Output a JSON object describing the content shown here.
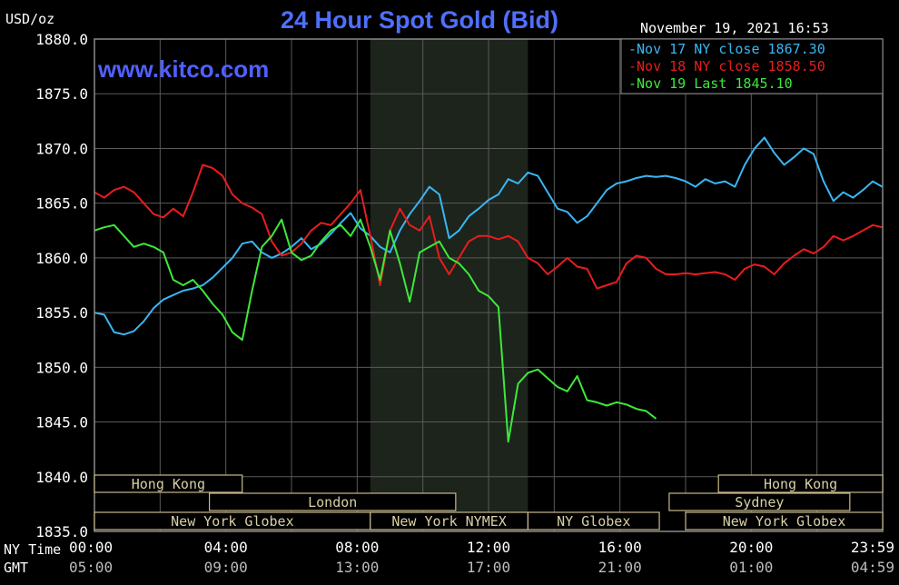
{
  "header": {
    "units": "USD/oz",
    "title": "24 Hour Spot Gold (Bid)",
    "site": "www.kitco.com",
    "timestamp": "November 19, 2021 16:53"
  },
  "legend": [
    {
      "label": "Nov 17 NY close 1867.30",
      "color": "#39b6f4"
    },
    {
      "label": "Nov 18 NY close 1858.50",
      "color": "#e81d1d"
    },
    {
      "label": "Nov 19 Last 1845.10",
      "color": "#3ee83a"
    }
  ],
  "axis": {
    "row_label_ny": "NY Time",
    "row_label_gmt": "GMT",
    "y_ticks": [
      "1880.0",
      "1875.0",
      "1870.0",
      "1865.0",
      "1860.0",
      "1855.0",
      "1850.0",
      "1845.0",
      "1840.0",
      "1835.0"
    ],
    "ny_ticks": [
      "00:00",
      "04:00",
      "08:00",
      "12:00",
      "16:00",
      "20:00",
      "23:59"
    ],
    "gmt_ticks": [
      "05:00",
      "09:00",
      "13:00",
      "17:00",
      "21:00",
      "01:00",
      "04:59"
    ]
  },
  "sessions": [
    {
      "label": "Hong Kong",
      "start": -1.0,
      "end": 4.5
    },
    {
      "label": "London",
      "start": 3.5,
      "end": 11.0
    },
    {
      "label": "New York Globex",
      "start": 0.0,
      "end": 8.4
    },
    {
      "label": "New York NYMEX",
      "start": 8.4,
      "end": 13.2
    },
    {
      "label": "NY Globex",
      "start": 13.2,
      "end": 17.2
    },
    {
      "label": "Hong Kong",
      "start": 19.0,
      "end": 24.0
    },
    {
      "label": "Sydney",
      "start": 17.5,
      "end": 23.0
    },
    {
      "label": "New York Globex",
      "start": 18.0,
      "end": 24.0
    }
  ],
  "chart_data": {
    "type": "line",
    "title": "24 Hour Spot Gold (Bid)",
    "ylabel": "USD/oz",
    "xlabel": "NY Time",
    "xlim": [
      0,
      24
    ],
    "ylim": [
      1835,
      1880
    ],
    "shaded_region": [
      8.4,
      13.2
    ],
    "grid": true,
    "legend_position": "top-right",
    "series": [
      {
        "name": "Nov 17 NY close 1867.30",
        "color": "#39b6f4",
        "x": [
          0,
          0.3,
          0.6,
          0.9,
          1.2,
          1.5,
          1.8,
          2.1,
          2.4,
          2.7,
          3.0,
          3.3,
          3.6,
          3.9,
          4.2,
          4.5,
          4.8,
          5.1,
          5.4,
          5.7,
          6.0,
          6.3,
          6.6,
          6.9,
          7.2,
          7.5,
          7.8,
          8.1,
          8.4,
          8.7,
          9.0,
          9.3,
          9.6,
          9.9,
          10.2,
          10.5,
          10.8,
          11.1,
          11.4,
          11.7,
          12.0,
          12.3,
          12.6,
          12.9,
          13.2,
          13.5,
          13.8,
          14.1,
          14.4,
          14.7,
          15.0,
          15.3,
          15.6,
          15.9,
          16.2,
          16.5,
          16.8,
          17.1,
          17.4,
          17.7,
          18.0,
          18.3,
          18.6,
          18.9,
          19.2,
          19.5,
          19.8,
          20.1,
          20.4,
          20.7,
          21.0,
          21.3,
          21.6,
          21.9,
          22.2,
          22.5,
          22.8,
          23.1,
          23.4,
          23.7,
          23.99
        ],
        "values": [
          1855,
          1854.8,
          1853.2,
          1853.0,
          1853.3,
          1854.2,
          1855.4,
          1856.2,
          1856.6,
          1857.0,
          1857.2,
          1857.5,
          1858.2,
          1859.1,
          1860.0,
          1861.3,
          1861.5,
          1860.5,
          1860.0,
          1860.4,
          1861.0,
          1861.8,
          1860.8,
          1861.3,
          1862.2,
          1863.2,
          1864.1,
          1862.7,
          1862.0,
          1861.0,
          1860.5,
          1862.5,
          1864.0,
          1865.2,
          1866.5,
          1865.8,
          1861.8,
          1862.5,
          1863.8,
          1864.5,
          1865.3,
          1865.8,
          1867.2,
          1866.8,
          1867.8,
          1867.5,
          1866.0,
          1864.5,
          1864.2,
          1863.2,
          1863.8,
          1865.0,
          1866.2,
          1866.8,
          1867.0,
          1867.3,
          1867.5,
          1867.4,
          1867.5,
          1867.3,
          1867.0,
          1866.5,
          1867.2,
          1866.8,
          1867.0,
          1866.5,
          1868.5,
          1870.0,
          1871.0,
          1869.6,
          1868.5,
          1869.2,
          1870.0,
          1869.5,
          1867.0,
          1865.2,
          1866.0,
          1865.5,
          1866.2,
          1867.0,
          1866.5
        ]
      },
      {
        "name": "Nov 18 NY close 1858.50",
        "color": "#e81d1d",
        "x": [
          0,
          0.3,
          0.6,
          0.9,
          1.2,
          1.5,
          1.8,
          2.1,
          2.4,
          2.7,
          3.0,
          3.3,
          3.6,
          3.9,
          4.2,
          4.5,
          4.8,
          5.1,
          5.4,
          5.7,
          6.0,
          6.3,
          6.6,
          6.9,
          7.2,
          7.5,
          7.8,
          8.1,
          8.4,
          8.7,
          9.0,
          9.3,
          9.6,
          9.9,
          10.2,
          10.5,
          10.8,
          11.1,
          11.4,
          11.7,
          12.0,
          12.3,
          12.6,
          12.9,
          13.2,
          13.5,
          13.8,
          14.1,
          14.4,
          14.7,
          15.0,
          15.3,
          15.6,
          15.9,
          16.2,
          16.5,
          16.8,
          17.1,
          17.4,
          17.7,
          18.0,
          18.3,
          18.6,
          18.9,
          19.2,
          19.5,
          19.8,
          20.1,
          20.4,
          20.7,
          21.0,
          21.3,
          21.6,
          21.9,
          22.2,
          22.5,
          22.8,
          23.1,
          23.4,
          23.7,
          23.99
        ],
        "values": [
          1866.0,
          1865.5,
          1866.2,
          1866.5,
          1866.0,
          1865.0,
          1864.0,
          1863.7,
          1864.5,
          1863.8,
          1866.0,
          1868.5,
          1868.2,
          1867.5,
          1865.8,
          1865.0,
          1864.6,
          1864.0,
          1861.5,
          1860.2,
          1860.5,
          1861.3,
          1862.5,
          1863.2,
          1863.0,
          1864.0,
          1865.0,
          1866.2,
          1862.0,
          1857.5,
          1862.5,
          1864.5,
          1863.0,
          1862.5,
          1863.8,
          1860.0,
          1858.5,
          1860.0,
          1861.5,
          1862.0,
          1862.0,
          1861.7,
          1862.0,
          1861.5,
          1860.0,
          1859.5,
          1858.5,
          1859.2,
          1860.0,
          1859.2,
          1859.0,
          1857.2,
          1857.5,
          1857.8,
          1859.5,
          1860.2,
          1860.0,
          1859.0,
          1858.5,
          1858.5,
          1858.6,
          1858.5,
          1858.6,
          1858.7,
          1858.5,
          1858.0,
          1859.0,
          1859.4,
          1859.2,
          1858.5,
          1859.5,
          1860.2,
          1860.8,
          1860.4,
          1861.0,
          1862.0,
          1861.6,
          1862.0,
          1862.5,
          1863.0,
          1862.8
        ]
      },
      {
        "name": "Nov 19 Last 1845.10",
        "color": "#3ee83a",
        "x": [
          0,
          0.3,
          0.6,
          0.9,
          1.2,
          1.5,
          1.8,
          2.1,
          2.4,
          2.7,
          3.0,
          3.3,
          3.6,
          3.9,
          4.2,
          4.5,
          4.8,
          5.1,
          5.4,
          5.7,
          6.0,
          6.3,
          6.6,
          6.9,
          7.2,
          7.5,
          7.8,
          8.1,
          8.4,
          8.7,
          9.0,
          9.3,
          9.6,
          9.9,
          10.2,
          10.5,
          10.8,
          11.1,
          11.4,
          11.7,
          12.0,
          12.3,
          12.6,
          12.9,
          13.2,
          13.5,
          13.8,
          14.1,
          14.4,
          14.7,
          15.0,
          15.3,
          15.6,
          15.9,
          16.2,
          16.5,
          16.8,
          17.1
        ],
        "values": [
          1862.5,
          1862.8,
          1863.0,
          1862.0,
          1861.0,
          1861.3,
          1861.0,
          1860.5,
          1858.0,
          1857.5,
          1858.0,
          1857.0,
          1855.8,
          1854.8,
          1853.2,
          1852.5,
          1857.0,
          1861.0,
          1862.0,
          1863.5,
          1860.5,
          1859.8,
          1860.2,
          1861.5,
          1862.5,
          1863.0,
          1862.0,
          1863.5,
          1861.0,
          1858.0,
          1862.5,
          1859.5,
          1856.0,
          1860.5,
          1861.0,
          1861.5,
          1860.0,
          1859.5,
          1858.5,
          1857.0,
          1856.5,
          1855.5,
          1843.2,
          1848.5,
          1849.5,
          1849.8,
          1849.0,
          1848.2,
          1847.8,
          1849.2,
          1847.0,
          1846.8,
          1846.5,
          1846.8,
          1846.6,
          1846.2,
          1846.0,
          1845.3
        ]
      }
    ]
  }
}
